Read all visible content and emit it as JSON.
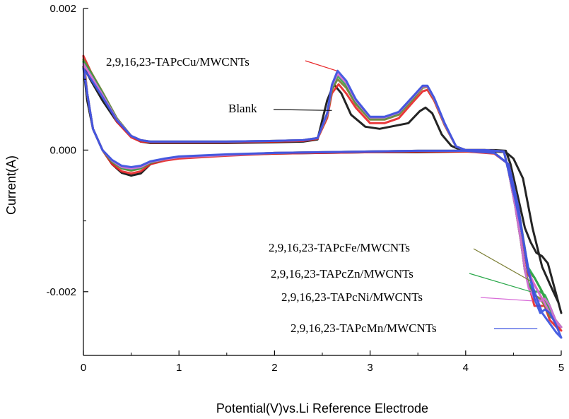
{
  "chart_data": {
    "type": "line",
    "title": "",
    "xlabel": "Potential(V)vs.Li Reference Electrode",
    "ylabel": "Current(A)",
    "xlim": [
      0,
      5
    ],
    "ylim": [
      -0.0029,
      0.002
    ],
    "x_ticks": [
      0,
      1,
      2,
      3,
      4,
      5
    ],
    "x_tick_labels": [
      "0",
      "1",
      "2",
      "3",
      "4",
      "5"
    ],
    "y_ticks": [
      0.002,
      0.0,
      -0.002
    ],
    "y_tick_labels": [
      "0.002",
      "0.000",
      "-0.002"
    ],
    "grid": false,
    "legend": "none",
    "annotations": [
      {
        "text": "2,9,16,23-TAPcCu/MWCNTs",
        "series": "Cu",
        "target": [
          2.65,
          0.00112
        ]
      },
      {
        "text": "Blank",
        "series": "Blank",
        "target": [
          2.6,
          0.00056
        ]
      },
      {
        "text": "2,9,16,23-TAPcFe/MWCNTs",
        "series": "Fe",
        "target": [
          4.68,
          -0.00185
        ]
      },
      {
        "text": "2,9,16,23-TAPcZn/MWCNTs",
        "series": "Zn",
        "target": [
          4.68,
          -0.002
        ]
      },
      {
        "text": "2,9,16,23-TAPcNi/MWCNTs",
        "series": "Ni",
        "target": [
          4.7,
          -0.00213
        ]
      },
      {
        "text": "2,9,16,23-TAPcMn/MWCNTs",
        "series": "Mn",
        "target": [
          4.75,
          -0.00252
        ]
      }
    ],
    "series": [
      {
        "key": "Blank",
        "color": "#111111",
        "x": [
          0,
          0.08,
          0.2,
          0.35,
          0.5,
          0.6,
          0.7,
          0.85,
          1.0,
          1.5,
          2.0,
          2.3,
          2.45,
          2.55,
          2.62,
          2.7,
          2.8,
          2.95,
          3.1,
          3.25,
          3.4,
          3.52,
          3.58,
          3.65,
          3.75,
          3.85,
          3.95,
          4.1,
          4.3,
          4.42,
          4.47,
          4.52,
          4.57,
          4.62,
          4.68,
          4.74,
          4.8,
          4.86,
          4.92,
          4.96,
          5.0,
          4.97,
          4.9,
          4.8,
          4.7,
          4.6,
          4.5,
          4.42,
          4.3,
          4.0,
          3.5,
          3.0,
          2.5,
          2.0,
          1.5,
          1.0,
          0.85,
          0.7,
          0.6,
          0.5,
          0.4,
          0.3,
          0.2,
          0.1,
          0.04,
          0
        ],
        "y": [
          0.00118,
          0.00098,
          0.0007,
          0.0004,
          0.0002,
          0.00012,
          0.0001,
          0.0001,
          0.0001,
          0.0001,
          0.00011,
          0.00012,
          0.00015,
          0.0007,
          0.00093,
          0.0008,
          0.0005,
          0.00033,
          0.0003,
          0.00034,
          0.00038,
          0.00055,
          0.0006,
          0.00052,
          0.00022,
          6e-05,
          0.0,
          0.0,
          0.0,
          -1e-05,
          -0.0002,
          -0.0005,
          -0.0008,
          -0.0011,
          -0.0013,
          -0.00145,
          -0.0015,
          -0.0016,
          -0.0019,
          -0.0021,
          -0.0023,
          -0.00215,
          -0.00195,
          -0.00165,
          -0.0011,
          -0.0004,
          -0.00012,
          -3e-05,
          -2e-05,
          -2e-05,
          -3e-05,
          -3e-05,
          -4e-05,
          -5e-05,
          -7e-05,
          -0.0001,
          -0.00013,
          -0.0002,
          -0.00033,
          -0.00036,
          -0.00032,
          -0.0002,
          0.0,
          0.0003,
          0.0007,
          0.00118
        ]
      },
      {
        "key": "Cu",
        "color": "#e8282a",
        "x": [
          0,
          0.08,
          0.2,
          0.35,
          0.5,
          0.6,
          0.7,
          0.85,
          1.0,
          1.5,
          2.0,
          2.3,
          2.45,
          2.55,
          2.6,
          2.67,
          2.75,
          2.85,
          3.0,
          3.15,
          3.3,
          3.45,
          3.55,
          3.6,
          3.67,
          3.78,
          3.9,
          4.0,
          4.2,
          4.4,
          4.45,
          4.52,
          4.58,
          4.62,
          4.66,
          4.72,
          4.78,
          4.83,
          4.88,
          4.94,
          5.0,
          4.95,
          4.88,
          4.8,
          4.72,
          4.65,
          4.55,
          4.45,
          4.3,
          4.0,
          3.5,
          3.0,
          2.5,
          2.0,
          1.5,
          1.0,
          0.85,
          0.7,
          0.6,
          0.5,
          0.4,
          0.3,
          0.2,
          0.1,
          0.04,
          0
        ],
        "y": [
          0.00133,
          0.0011,
          0.0008,
          0.0004,
          0.00018,
          0.00012,
          0.00011,
          0.00011,
          0.00011,
          0.00011,
          0.00012,
          0.00013,
          0.00016,
          0.00045,
          0.0008,
          0.00093,
          0.0008,
          0.0006,
          0.00038,
          0.00038,
          0.00045,
          0.00068,
          0.00083,
          0.00085,
          0.0007,
          0.00035,
          5e-05,
          0.0,
          0.0,
          -2e-05,
          -0.0003,
          -0.0008,
          -0.0013,
          -0.0017,
          -0.0019,
          -0.0022,
          -0.0022,
          -0.0022,
          -0.0023,
          -0.00245,
          -0.00255,
          -0.0025,
          -0.0024,
          -0.0021,
          -0.0019,
          -0.00175,
          -0.0008,
          -0.0002,
          -5e-05,
          -2e-05,
          -2e-05,
          -3e-05,
          -4e-05,
          -5e-05,
          -8e-05,
          -0.00012,
          -0.00015,
          -0.0002,
          -0.0003,
          -0.00033,
          -0.0003,
          -0.0002,
          0.0,
          0.0003,
          0.0008,
          0.00133
        ]
      },
      {
        "key": "Fe",
        "color": "#7a7d32",
        "x": [
          0,
          0.08,
          0.2,
          0.35,
          0.5,
          0.6,
          0.7,
          0.85,
          1.0,
          1.5,
          2.0,
          2.3,
          2.45,
          2.55,
          2.6,
          2.66,
          2.75,
          2.85,
          3.0,
          3.15,
          3.3,
          3.45,
          3.55,
          3.6,
          3.67,
          3.78,
          3.9,
          4.0,
          4.2,
          4.4,
          4.45,
          4.52,
          4.58,
          4.62,
          4.66,
          4.72,
          4.78,
          4.83,
          4.88,
          4.94,
          5.0,
          4.95,
          4.88,
          4.8,
          4.72,
          4.65,
          4.55,
          4.45,
          4.3,
          4.0,
          3.5,
          3.0,
          2.5,
          2.0,
          1.5,
          1.0,
          0.85,
          0.7,
          0.6,
          0.5,
          0.4,
          0.3,
          0.2,
          0.1,
          0.04,
          0
        ],
        "y": [
          0.00128,
          0.0011,
          0.00082,
          0.00045,
          0.0002,
          0.00014,
          0.00012,
          0.00012,
          0.00012,
          0.00012,
          0.00013,
          0.00014,
          0.00017,
          0.00048,
          0.00085,
          0.001,
          0.00088,
          0.00065,
          0.00043,
          0.00043,
          0.0005,
          0.00072,
          0.00088,
          0.00089,
          0.00072,
          0.00036,
          5e-05,
          0.0,
          0.0,
          -2e-05,
          -0.0003,
          -0.0008,
          -0.0013,
          -0.0017,
          -0.00188,
          -0.00205,
          -0.0021,
          -0.0022,
          -0.00235,
          -0.0024,
          -0.0025,
          -0.00245,
          -0.0023,
          -0.002,
          -0.0018,
          -0.0017,
          -0.0008,
          -0.0002,
          -4e-05,
          -1e-05,
          -1e-05,
          -2e-05,
          -3e-05,
          -4e-05,
          -7e-05,
          -0.0001,
          -0.00013,
          -0.00018,
          -0.00026,
          -0.00029,
          -0.00026,
          -0.00017,
          0.0,
          0.0003,
          0.0008,
          0.00128
        ]
      },
      {
        "key": "Zn",
        "color": "#2aa84a",
        "x": [
          0,
          0.08,
          0.2,
          0.35,
          0.5,
          0.6,
          0.7,
          0.85,
          1.0,
          1.5,
          2.0,
          2.3,
          2.45,
          2.55,
          2.6,
          2.66,
          2.75,
          2.85,
          3.0,
          3.15,
          3.3,
          3.45,
          3.55,
          3.6,
          3.67,
          3.78,
          3.9,
          4.0,
          4.2,
          4.4,
          4.45,
          4.52,
          4.58,
          4.62,
          4.66,
          4.72,
          4.78,
          4.83,
          4.88,
          4.94,
          5.0,
          4.95,
          4.88,
          4.8,
          4.72,
          4.65,
          4.55,
          4.45,
          4.3,
          4.0,
          3.5,
          3.0,
          2.5,
          2.0,
          1.5,
          1.0,
          0.85,
          0.7,
          0.6,
          0.5,
          0.4,
          0.3,
          0.2,
          0.1,
          0.04,
          0
        ],
        "y": [
          0.00125,
          0.00108,
          0.0008,
          0.00044,
          0.0002,
          0.00014,
          0.00012,
          0.00012,
          0.00012,
          0.00012,
          0.00013,
          0.00014,
          0.00017,
          0.0005,
          0.00088,
          0.00105,
          0.00092,
          0.00068,
          0.00045,
          0.00045,
          0.00052,
          0.00074,
          0.0009,
          0.0009,
          0.00073,
          0.00037,
          5e-05,
          0.0,
          0.0,
          -2e-05,
          -0.0003,
          -0.0008,
          -0.0013,
          -0.0017,
          -0.0019,
          -0.002,
          -0.002,
          -0.00205,
          -0.0022,
          -0.0024,
          -0.0025,
          -0.00245,
          -0.00225,
          -0.002,
          -0.0018,
          -0.00165,
          -0.0008,
          -0.0002,
          -4e-05,
          -1e-05,
          -1e-05,
          -2e-05,
          -3e-05,
          -4e-05,
          -7e-05,
          -0.0001,
          -0.00013,
          -0.00018,
          -0.00025,
          -0.00028,
          -0.00025,
          -0.00016,
          0.0,
          0.0003,
          0.0008,
          0.00125
        ]
      },
      {
        "key": "Ni",
        "color": "#d86cd8",
        "x": [
          0,
          0.08,
          0.2,
          0.35,
          0.5,
          0.6,
          0.7,
          0.85,
          1.0,
          1.5,
          2.0,
          2.3,
          2.45,
          2.55,
          2.6,
          2.66,
          2.75,
          2.85,
          3.0,
          3.15,
          3.3,
          3.45,
          3.55,
          3.6,
          3.67,
          3.78,
          3.9,
          4.0,
          4.2,
          4.4,
          4.45,
          4.52,
          4.58,
          4.62,
          4.66,
          4.72,
          4.78,
          4.83,
          4.88,
          4.94,
          5.0,
          4.95,
          4.88,
          4.8,
          4.72,
          4.65,
          4.55,
          4.45,
          4.3,
          4.0,
          3.5,
          3.0,
          2.5,
          2.0,
          1.5,
          1.0,
          0.85,
          0.7,
          0.6,
          0.5,
          0.4,
          0.3,
          0.2,
          0.1,
          0.04,
          0
        ],
        "y": [
          0.00122,
          0.00105,
          0.00078,
          0.00043,
          0.0002,
          0.00014,
          0.00012,
          0.00012,
          0.00012,
          0.00012,
          0.00013,
          0.00014,
          0.00017,
          0.0005,
          0.0009,
          0.00108,
          0.00095,
          0.0007,
          0.00046,
          0.00046,
          0.00053,
          0.00075,
          0.0009,
          0.0009,
          0.00073,
          0.00037,
          5e-05,
          0.0,
          0.0,
          -2e-05,
          -0.0003,
          -0.0008,
          -0.0013,
          -0.0017,
          -0.00195,
          -0.0021,
          -0.00213,
          -0.0021,
          -0.0022,
          -0.0024,
          -0.0025,
          -0.00245,
          -0.0023,
          -0.0021,
          -0.0019,
          -0.0017,
          -0.0008,
          -0.0002,
          -4e-05,
          -1e-05,
          -1e-05,
          -2e-05,
          -3e-05,
          -4e-05,
          -7e-05,
          -0.0001,
          -0.00013,
          -0.00017,
          -0.00024,
          -0.00026,
          -0.00024,
          -0.00015,
          0.0,
          0.0003,
          0.0008,
          0.00122
        ]
      },
      {
        "key": "Mn",
        "color": "#3a52e0",
        "x": [
          0,
          0.08,
          0.2,
          0.35,
          0.5,
          0.6,
          0.7,
          0.85,
          1.0,
          1.5,
          2.0,
          2.3,
          2.45,
          2.55,
          2.6,
          2.66,
          2.75,
          2.85,
          3.0,
          3.15,
          3.3,
          3.45,
          3.55,
          3.6,
          3.67,
          3.78,
          3.9,
          4.0,
          4.2,
          4.4,
          4.45,
          4.52,
          4.58,
          4.62,
          4.66,
          4.72,
          4.78,
          4.83,
          4.88,
          4.94,
          5.0,
          4.95,
          4.88,
          4.8,
          4.72,
          4.65,
          4.55,
          4.45,
          4.3,
          4.0,
          3.5,
          3.0,
          2.5,
          2.0,
          1.5,
          1.0,
          0.85,
          0.7,
          0.6,
          0.5,
          0.4,
          0.3,
          0.2,
          0.1,
          0.04,
          0
        ],
        "y": [
          0.00115,
          0.001,
          0.00075,
          0.00042,
          0.0002,
          0.00014,
          0.00012,
          0.00012,
          0.00012,
          0.00012,
          0.00013,
          0.00014,
          0.00017,
          0.00052,
          0.00092,
          0.00112,
          0.00098,
          0.00072,
          0.00047,
          0.00047,
          0.00054,
          0.00076,
          0.00091,
          0.00091,
          0.00074,
          0.00038,
          5e-05,
          0.0,
          0.0,
          -2e-05,
          -0.0003,
          -0.0007,
          -0.0011,
          -0.0014,
          -0.0017,
          -0.0021,
          -0.0023,
          -0.00225,
          -0.0023,
          -0.00245,
          -0.00265,
          -0.00258,
          -0.00245,
          -0.0023,
          -0.002,
          -0.0017,
          -0.0008,
          -0.0002,
          -4e-05,
          -1e-05,
          -1e-05,
          -2e-05,
          -3e-05,
          -4e-05,
          -6e-05,
          -9e-05,
          -0.00012,
          -0.00016,
          -0.00022,
          -0.00024,
          -0.00022,
          -0.00014,
          0.0,
          0.0003,
          0.0008,
          0.00115
        ]
      }
    ]
  }
}
